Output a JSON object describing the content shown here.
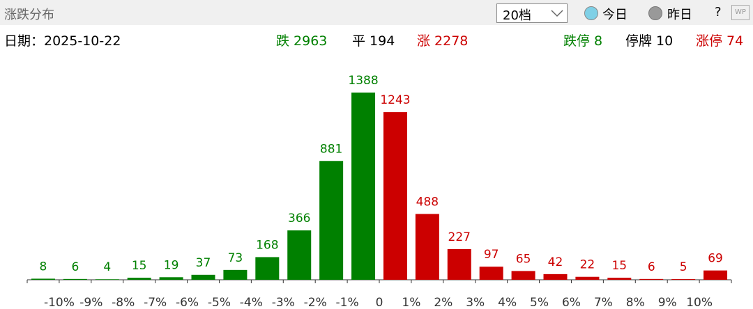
{
  "header": {
    "title": "涨跌分布",
    "dropdown": "20档",
    "radio_today": "今日",
    "radio_yesterday": "昨日",
    "help": "?",
    "icon": "WP"
  },
  "summary": {
    "date": "日期：2025-10-22",
    "down": "跌 2963",
    "flat": "平 194",
    "up": "涨 2278",
    "limit_down": "跌停 8",
    "suspended": "停牌 10",
    "limit_up": "涨停 74"
  },
  "chart_data": {
    "type": "bar",
    "values": [
      8,
      6,
      4,
      15,
      19,
      37,
      73,
      168,
      366,
      881,
      1388,
      1243,
      488,
      227,
      97,
      65,
      42,
      22,
      15,
      6,
      5,
      69
    ],
    "colors": [
      "#008000",
      "#008000",
      "#008000",
      "#008000",
      "#008000",
      "#008000",
      "#008000",
      "#008000",
      "#008000",
      "#008000",
      "#008000",
      "#cc0000",
      "#cc0000",
      "#cc0000",
      "#cc0000",
      "#cc0000",
      "#cc0000",
      "#cc0000",
      "#cc0000",
      "#cc0000",
      "#cc0000",
      "#cc0000"
    ],
    "xtick_labels": [
      "-10%",
      "-9%",
      "-8%",
      "-7%",
      "-6%",
      "-5%",
      "-4%",
      "-3%",
      "-2%",
      "-1%",
      "0",
      "1%",
      "2%",
      "3%",
      "4%",
      "5%",
      "6%",
      "7%",
      "8%",
      "9%",
      "10%"
    ]
  }
}
